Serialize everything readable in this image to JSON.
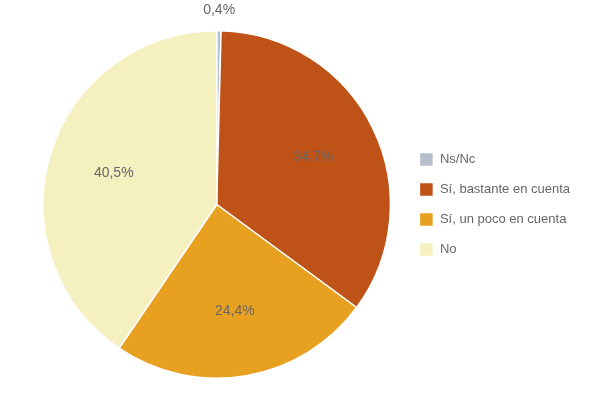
{
  "chart_data": {
    "type": "pie",
    "categories": [
      "Ns/Nc",
      "Sí, bastante en cuenta",
      "Sí, un poco en cuenta",
      "No"
    ],
    "values": [
      0.4,
      34.7,
      24.4,
      40.5
    ],
    "value_labels": [
      "0,4%",
      "34,7%",
      "24,4%",
      "40,5%"
    ],
    "colors": [
      "#b8bfcc",
      "#bf5217",
      "#e8a020",
      "#f5f0c0"
    ],
    "data_labels": true,
    "legend": "right"
  }
}
